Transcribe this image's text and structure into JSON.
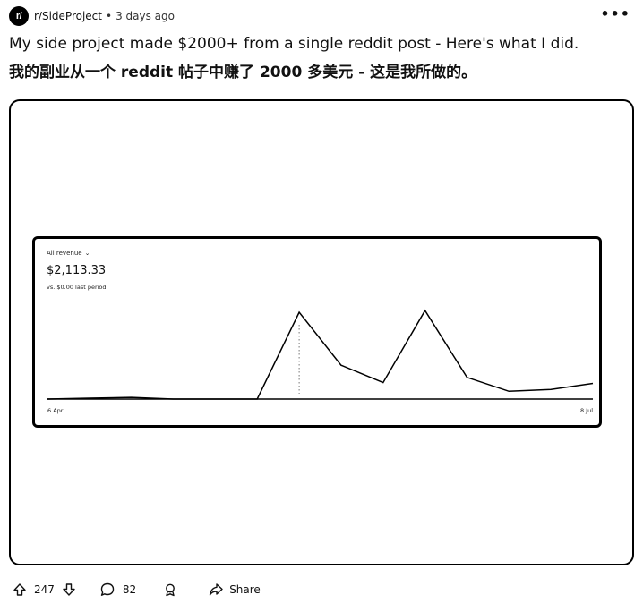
{
  "post": {
    "subreddit": "r/SideProject",
    "separator": "•",
    "time": "3 days ago",
    "avatar_text": "r/",
    "more_icon": "•••",
    "title_en": "My side project made $2000+ from a single reddit post - Here's what I did.",
    "title_zh": "我的副业从一个 reddit 帖子中赚了 2000 多美元 - 这是我所做的。"
  },
  "dashboard": {
    "metric_label": "All revenue",
    "caret": "⌄",
    "value": "$2,113.33",
    "comparison": "vs. $0.00 last period"
  },
  "chart_data": {
    "type": "line",
    "xlabel": "",
    "ylabel": "",
    "x_tick_labels": [
      "6 Apr",
      "8 Jul"
    ],
    "series": [
      {
        "values": [
          0.0,
          0.01,
          0.02,
          0.0,
          0.0,
          0.0,
          1.0,
          0.39,
          0.19,
          1.02,
          0.25,
          0.09,
          0.11,
          0.18
        ]
      }
    ],
    "marker_index": 6,
    "line_color": "#000000",
    "grid": false
  },
  "actions": {
    "upvotes": "247",
    "comments": "82",
    "share_label": "Share"
  },
  "colors": {
    "text": "#111111",
    "border": "#000000",
    "background": "#ffffff"
  }
}
